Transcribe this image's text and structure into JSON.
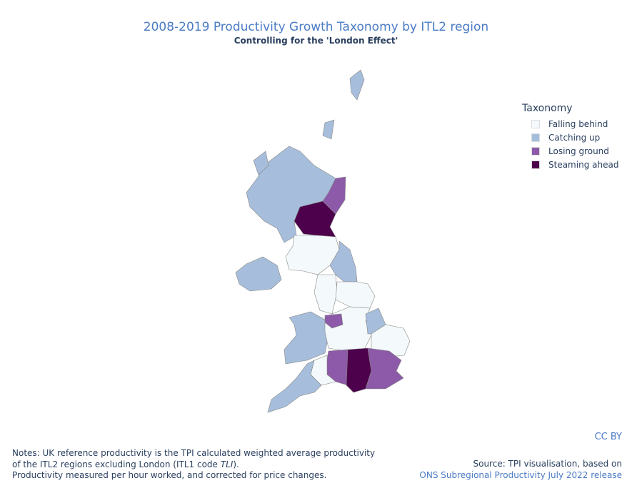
{
  "header": {
    "title": "2008-2019 Productivity Growth Taxonomy by ITL2 region",
    "subtitle": "Controlling for the 'London Effect'"
  },
  "legend": {
    "title": "Taxonomy",
    "items": [
      {
        "name": "Falling behind",
        "color": "#f4fafb"
      },
      {
        "name": "Catching up",
        "color": "#a6bedb"
      },
      {
        "name": "Losing ground",
        "color": "#8c5aa8"
      },
      {
        "name": "Steaming ahead",
        "color": "#4d004b"
      }
    ]
  },
  "license": "CC BY",
  "notes": {
    "line1": "Notes: UK reference productivity is the TPI calculated weighted average productivity",
    "line2_start": "of the ITL2 regions excluding London (ITL1 code ",
    "line2_code": "TLI",
    "line2_end": ").",
    "line3": "Productivity measured per hour worked, and corrected for price changes."
  },
  "source": {
    "line1": "Source: TPI visualisation, based on",
    "line2": "ONS Subregional Productivity July 2022 release"
  }
}
